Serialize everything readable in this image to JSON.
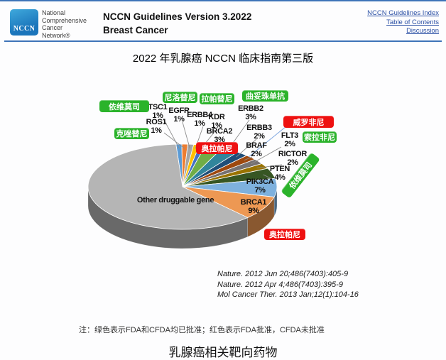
{
  "header": {
    "logo_text": "NCCN",
    "org_name_lines": [
      "National",
      "Comprehensive",
      "Cancer",
      "Network®"
    ],
    "guideline_title": "NCCN Guidelines Version 3.2022",
    "guideline_subtitle": "Breast Cancer",
    "nav_links": [
      "NCCN Guidelines Index",
      "Table of Contents",
      "Discussion"
    ]
  },
  "page_title": "2022 年乳腺癌 NCCN 临床指南第三版",
  "chart_data": {
    "type": "pie",
    "style": "3d-pie",
    "title": "乳腺癌相关靶向药物",
    "unit": "percent",
    "slices": [
      {
        "gene": "TSC1",
        "value": 1,
        "label": "TSC1 1%",
        "color": "#5B9BD5"
      },
      {
        "gene": "ROS1",
        "value": 1,
        "label": "ROS1 1%",
        "color": "#ED7D31"
      },
      {
        "gene": "EGFR",
        "value": 1,
        "label": "EGFR 1%",
        "color": "#A5A5A5"
      },
      {
        "gene": "ERBB4",
        "value": 1,
        "label": "ERBB4 1%",
        "color": "#FFC000"
      },
      {
        "gene": "KDR",
        "value": 1,
        "label": "KDR 1%",
        "color": "#4472C4"
      },
      {
        "gene": "BRCA2",
        "value": 3,
        "label": "BRCA2 3%",
        "color": "#70AD47"
      },
      {
        "gene": "ERBB2",
        "value": 3,
        "label": "ERBB2 3%",
        "color": "#31859C"
      },
      {
        "gene": "ERBB3",
        "value": 2,
        "label": "ERBB3 2%",
        "color": "#1F4E79"
      },
      {
        "gene": "BRAF",
        "value": 2,
        "label": "BRAF 2%",
        "color": "#9E480E"
      },
      {
        "gene": "FLT3",
        "value": 2,
        "label": "FLT3 2%",
        "color": "#767171"
      },
      {
        "gene": "RICTOR",
        "value": 2,
        "label": "RICTOR 2%",
        "color": "#997300"
      },
      {
        "gene": "PTEN",
        "value": 4,
        "label": "PTEN 4%",
        "color": "#375623"
      },
      {
        "gene": "PIK3CA",
        "value": 7,
        "label": "PIK3CA 7%",
        "color": "#7EB1DE"
      },
      {
        "gene": "BRCA1",
        "value": 9,
        "label": "BRCA1 9%",
        "color": "#ED9853"
      },
      {
        "gene": "Other druggable gene",
        "value": 61,
        "label": "Other druggable gene",
        "color": "#B5B5B5"
      }
    ],
    "drug_labels": [
      {
        "id": "everolimus-left",
        "text": "依维莫司",
        "approval": "green"
      },
      {
        "id": "crizotinib",
        "text": "克唑替尼",
        "approval": "green"
      },
      {
        "id": "nilotinib",
        "text": "尼洛替尼",
        "approval": "green"
      },
      {
        "id": "lapatinib",
        "text": "拉帕替尼",
        "approval": "green"
      },
      {
        "id": "trastuzumab",
        "text": "曲妥珠单抗",
        "approval": "green"
      },
      {
        "id": "olaparib-top",
        "text": "奥拉帕尼",
        "approval": "red"
      },
      {
        "id": "vemurafenib",
        "text": "威罗非尼",
        "approval": "red"
      },
      {
        "id": "sorafenib",
        "text": "索拉非尼",
        "approval": "green"
      },
      {
        "id": "everolimus-rotated",
        "text": "依维莫司",
        "approval": "green"
      },
      {
        "id": "olaparib-bottom",
        "text": "奥拉帕尼",
        "approval": "red"
      }
    ],
    "approval_colors": {
      "green": "#2BB32B",
      "red": "#EE1111"
    },
    "legend": "none"
  },
  "citations": [
    "Nature. 2012 Jun 20;486(7403):405-9",
    "Nature. 2012 Apr 4;486(7403):395-9",
    "Mol Cancer Ther. 2013 Jan;12(1):104-16"
  ],
  "note": "注：绿色表示FDA和CFDA均已批准；红色表示FDA批准，CFDA未批准",
  "caption": "乳腺癌相关靶向药物"
}
